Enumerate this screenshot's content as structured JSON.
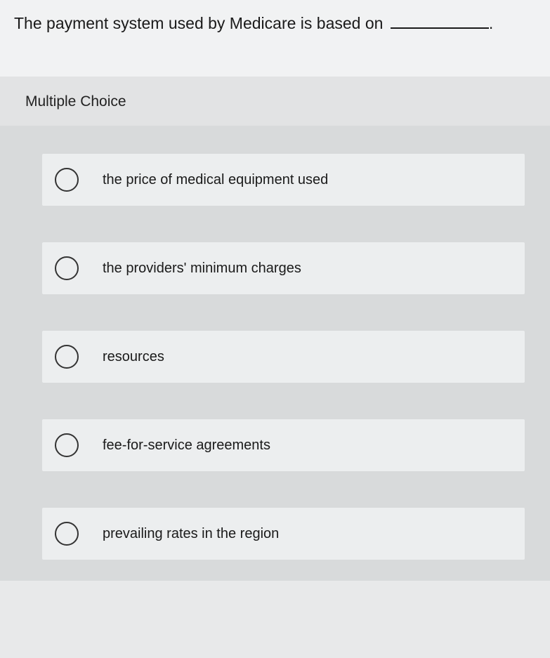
{
  "question": {
    "prefix": "The payment system used by Medicare is based on",
    "suffix": "."
  },
  "section_label": "Multiple Choice",
  "options": [
    {
      "label": "the price of medical equipment used"
    },
    {
      "label": "the providers' minimum charges"
    },
    {
      "label": "resources"
    },
    {
      "label": "fee-for-service agreements"
    },
    {
      "label": "prevailing rates in the region"
    }
  ],
  "colors": {
    "page_bg": "#e8e9ea",
    "question_bg": "#f1f2f3",
    "mc_bg": "#d8dadb",
    "option_bg": "#eceeef",
    "text": "#1a1a1a",
    "radio_border": "#333333"
  }
}
